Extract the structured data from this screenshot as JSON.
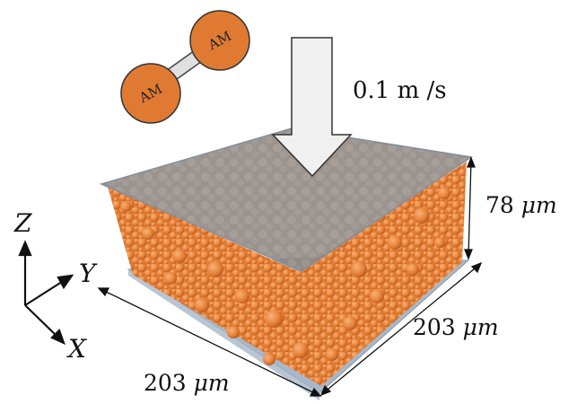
{
  "molecule": {
    "bead_top": "AM",
    "bead_bottom": "AM"
  },
  "velocity_label": "0.1 m /s",
  "dimensions": {
    "height": {
      "value": "78 ",
      "unit": "μm"
    },
    "depth": {
      "value": "203 ",
      "unit": "μm"
    },
    "width": {
      "value": "203 ",
      "unit": "μm"
    }
  },
  "axes": {
    "z": "Z",
    "y": "Y",
    "x": "X"
  },
  "colors": {
    "particle": "#e8843a",
    "particle_dark": "#b9581e",
    "plate": "#9aaabb",
    "piston": "#8a7f78",
    "arrow_fill": "#f0f0f0"
  }
}
